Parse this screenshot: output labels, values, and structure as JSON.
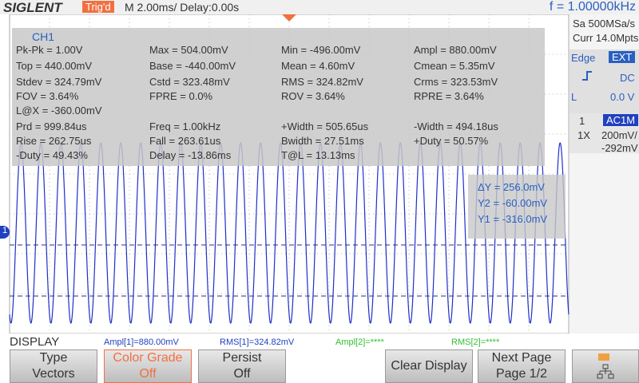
{
  "header": {
    "brand": "SIGLENT",
    "trigger": "Trig'd",
    "timebase": "M 2.00ms/ Delay:0.00s",
    "frequency": "f = 1.00000kHz"
  },
  "side_panel": {
    "sample_rate": "Sa 500MSa/s",
    "memory": "Curr 14.0Mpts",
    "trigger_type": "Edge",
    "trigger_source": "EXT",
    "coupling": "DC",
    "level_label": "L",
    "level": "0.0 V",
    "channel": "1",
    "channel_coupling": "AC1M",
    "probe": "1X",
    "scale": "200mV/",
    "offset": "-292mV"
  },
  "measurements": {
    "channel": "CH1",
    "rows": [
      [
        "Pk-Pk = 1.00V",
        "Max = 504.00mV",
        "Min = -496.00mV",
        "Ampl = 880.00mV"
      ],
      [
        "Top = 440.00mV",
        "Base = -440.00mV",
        "Mean = 4.60mV",
        "Cmean = 5.35mV"
      ],
      [
        "Stdev = 324.79mV",
        "Cstd = 323.48mV",
        "RMS = 324.82mV",
        "Crms = 323.53mV"
      ],
      [
        "FOV = 3.64%",
        "FPRE = 0.0%",
        "ROV = 3.64%",
        "RPRE = 3.64%"
      ],
      [
        "L@X = -360.00mV"
      ],
      [
        "Prd = 999.84us",
        "Freq = 1.00kHz",
        "+Width = 505.65us",
        "-Width = 494.18us"
      ],
      [
        "Rise = 262.75us",
        "Fall = 263.61us",
        "Bwidth = 27.51ms",
        "+Duty = 50.57%"
      ],
      [
        "-Duty = 49.43%",
        "Delay = -13.86ms",
        "T@L = 13.13ms"
      ]
    ]
  },
  "cursors": [
    "ΔY = 256.0mV",
    "Y2 = -60.00mV",
    "Y1 = -316.0mV"
  ],
  "channel_marker": "1",
  "status": {
    "menu": "DISPLAY",
    "items": [
      "Ampl[1]=880.00mV",
      "RMS[1]=324.82mV",
      "Ampl[2]=****",
      "RMS[2]=****"
    ]
  },
  "menu": [
    [
      "Type",
      "Vectors"
    ],
    [
      "Color Grade",
      "Off"
    ],
    [
      "Persist",
      "Off"
    ],
    [
      "Clear Display"
    ],
    [
      "Next Page",
      "Page 1/2"
    ]
  ]
}
